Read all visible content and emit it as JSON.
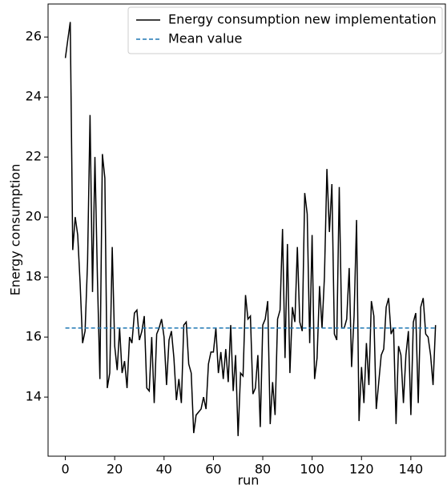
{
  "chart_data": {
    "type": "line",
    "xlabel": "run",
    "ylabel": "Energy consumption",
    "x": [
      0,
      1,
      2,
      3,
      4,
      5,
      6,
      7,
      8,
      9,
      10,
      11,
      12,
      13,
      14,
      15,
      16,
      17,
      18,
      19,
      20,
      21,
      22,
      23,
      24,
      25,
      26,
      27,
      28,
      29,
      30,
      31,
      32,
      33,
      34,
      35,
      36,
      37,
      38,
      39,
      40,
      41,
      42,
      43,
      44,
      45,
      46,
      47,
      48,
      49,
      50,
      51,
      52,
      53,
      54,
      55,
      56,
      57,
      58,
      59,
      60,
      61,
      62,
      63,
      64,
      65,
      66,
      67,
      68,
      69,
      70,
      71,
      72,
      73,
      74,
      75,
      76,
      77,
      78,
      79,
      80,
      81,
      82,
      83,
      84,
      85,
      86,
      87,
      88,
      89,
      90,
      91,
      92,
      93,
      94,
      95,
      96,
      97,
      98,
      99,
      100,
      101,
      102,
      103,
      104,
      105,
      106,
      107,
      108,
      109,
      110,
      111,
      112,
      113,
      114,
      115,
      116,
      117,
      118,
      119,
      120,
      121,
      122,
      123,
      124,
      125,
      126,
      127,
      128,
      129,
      130,
      131,
      132,
      133,
      134,
      135,
      136,
      137,
      138,
      139,
      140,
      141,
      142,
      143,
      144,
      145,
      146,
      147,
      148,
      149,
      150
    ],
    "series": [
      {
        "name": "Energy consumption new implementation",
        "color": "#000000",
        "dash": false,
        "values": [
          25.3,
          25.9,
          26.5,
          18.9,
          20.0,
          19.4,
          17.8,
          15.8,
          16.2,
          18.5,
          23.4,
          17.5,
          22.0,
          18.0,
          14.6,
          22.1,
          21.3,
          14.3,
          14.8,
          19.0,
          15.7,
          14.9,
          16.3,
          14.8,
          15.2,
          14.3,
          16.0,
          15.8,
          16.8,
          16.9,
          15.9,
          16.2,
          16.7,
          14.3,
          14.2,
          16.0,
          13.8,
          16.1,
          16.3,
          16.6,
          16.0,
          14.4,
          15.9,
          16.2,
          15.3,
          13.9,
          14.6,
          13.8,
          16.4,
          16.5,
          15.1,
          14.8,
          12.8,
          13.4,
          13.5,
          13.6,
          14.0,
          13.6,
          15.1,
          15.5,
          15.5,
          16.3,
          14.8,
          15.5,
          14.6,
          15.6,
          14.5,
          16.4,
          14.2,
          15.4,
          12.7,
          14.8,
          14.7,
          17.4,
          16.6,
          16.7,
          14.1,
          14.3,
          15.4,
          13.0,
          16.4,
          16.6,
          17.2,
          13.1,
          14.5,
          13.4,
          16.6,
          16.9,
          19.6,
          15.3,
          19.1,
          14.8,
          17.0,
          16.5,
          19.0,
          16.5,
          16.2,
          20.8,
          20.1,
          15.8,
          19.4,
          14.6,
          15.3,
          17.7,
          16.3,
          18.0,
          21.6,
          19.5,
          21.1,
          16.1,
          15.9,
          21.0,
          16.3,
          16.3,
          16.6,
          18.3,
          15.0,
          16.7,
          19.9,
          13.2,
          15.0,
          13.8,
          15.8,
          14.4,
          17.2,
          16.7,
          13.6,
          14.5,
          15.4,
          15.6,
          17.0,
          17.3,
          16.1,
          16.3,
          13.1,
          15.7,
          15.4,
          13.8,
          15.4,
          16.2,
          13.4,
          16.5,
          16.8,
          13.8,
          17.0,
          17.3,
          16.1,
          16.0,
          15.4,
          14.4,
          16.4
        ]
      },
      {
        "name": "Mean value",
        "color": "#1f77b4",
        "dash": true,
        "x": [
          0,
          150
        ],
        "values": [
          16.3,
          16.3
        ]
      }
    ],
    "xlim": [
      -7,
      154
    ],
    "ylim": [
      12.03,
      27.1
    ],
    "xticks": [
      0,
      20,
      40,
      60,
      80,
      100,
      120,
      140
    ],
    "yticks": [
      14,
      16,
      18,
      20,
      22,
      24,
      26
    ],
    "legend": "upper right"
  }
}
